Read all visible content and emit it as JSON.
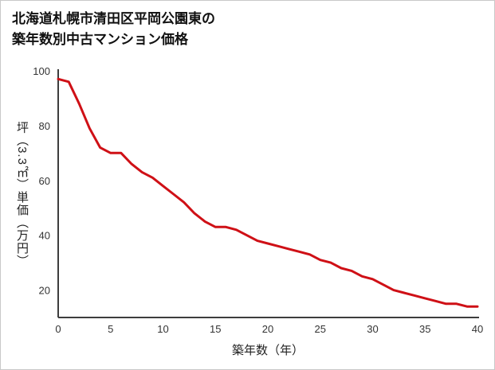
{
  "title": {
    "line1": "北海道札幌市清田区平岡公園東の",
    "line2": "築年数別中古マンション価格"
  },
  "chart_data": {
    "type": "line",
    "title": "北海道札幌市清田区平岡公園東の築年数別中古マンション価格",
    "xlabel": "築年数（年）",
    "ylabel": "坪（3.3㎡）単価（万円）",
    "x": [
      0,
      1,
      2,
      3,
      4,
      5,
      6,
      7,
      8,
      9,
      10,
      11,
      12,
      13,
      14,
      15,
      16,
      17,
      18,
      19,
      20,
      21,
      22,
      23,
      24,
      25,
      26,
      27,
      28,
      29,
      30,
      31,
      32,
      33,
      34,
      35,
      36,
      37,
      38,
      39,
      40
    ],
    "values": [
      97,
      96,
      88,
      79,
      72,
      70,
      70,
      66,
      63,
      61,
      58,
      55,
      52,
      48,
      45,
      43,
      43,
      42,
      40,
      38,
      37,
      36,
      35,
      34,
      33,
      31,
      30,
      28,
      27,
      25,
      24,
      22,
      20,
      19,
      18,
      17,
      16,
      15,
      15,
      14,
      14
    ],
    "xlim": [
      0,
      40
    ],
    "ylim": [
      10,
      100
    ],
    "xticks": [
      0,
      5,
      10,
      15,
      20,
      25,
      30,
      35,
      40
    ],
    "yticks": [
      20,
      40,
      60,
      80,
      100
    ],
    "grid": false,
    "legend": false,
    "line_color": "#cf1016",
    "axis_color": "#3d3d3d",
    "tick_label_color": "#333333"
  }
}
